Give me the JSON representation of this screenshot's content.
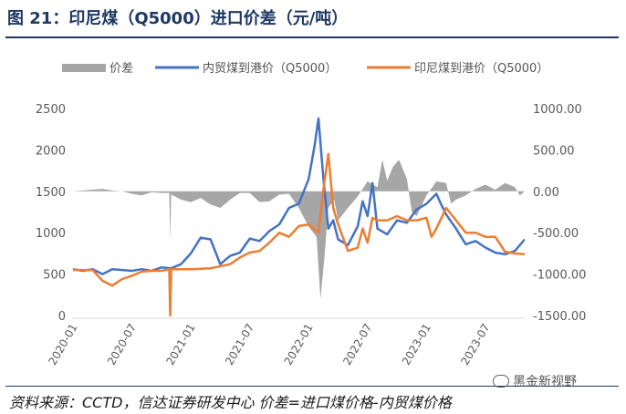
{
  "title": "图 21：印尼煤（Q5000）进口价差（元/吨）",
  "source": "资料来源：CCTD，信达证券研发中心  价差=进口煤价格-内贸煤价格",
  "watermark": "黑金新视野",
  "colors": {
    "spread": "#a6a6a6",
    "domestic": "#4472c4",
    "indonesia": "#ed7d31",
    "title": "#1f3864"
  },
  "chart_data": {
    "type": "line",
    "title": "",
    "left_axis": {
      "min": 0,
      "max": 2500,
      "ticks": [
        "0",
        "500",
        "1000",
        "1500",
        "2000",
        "2500"
      ]
    },
    "right_axis": {
      "min": -1500,
      "max": 1000,
      "ticks": [
        "-1500.00",
        "-1000.00",
        "-500.00",
        "0.00",
        "500.00",
        "1000.00"
      ]
    },
    "x_tick_labels": [
      "2020-01",
      "2020-07",
      "2021-01",
      "2021-07",
      "2022-01",
      "2022-07",
      "2023-01",
      "2023-07"
    ],
    "legend": {
      "spread": "价差",
      "domestic": "内贸煤到港价（Q5000）",
      "indonesia": "印尼煤到港价（Q5000）"
    },
    "series": [
      {
        "name": "价差",
        "kind": "area",
        "axis": "right",
        "points": [
          [
            0,
            0
          ],
          [
            1,
            10
          ],
          [
            2,
            20
          ],
          [
            3,
            30
          ],
          [
            4,
            10
          ],
          [
            5,
            0
          ],
          [
            6,
            -30
          ],
          [
            7,
            -50
          ],
          [
            8,
            -10
          ],
          [
            9,
            -20
          ],
          [
            9.8,
            -20
          ],
          [
            9.9,
            -600
          ],
          [
            10,
            -40
          ],
          [
            11,
            -100
          ],
          [
            12,
            -130
          ],
          [
            13,
            -80
          ],
          [
            14,
            -160
          ],
          [
            15,
            -200
          ],
          [
            16,
            -100
          ],
          [
            17,
            -20
          ],
          [
            18,
            -20
          ],
          [
            19,
            -130
          ],
          [
            20,
            -120
          ],
          [
            21,
            -40
          ],
          [
            22,
            -30
          ],
          [
            23,
            -200
          ],
          [
            24,
            -430
          ],
          [
            24.8,
            -550
          ],
          [
            25.2,
            -1300
          ],
          [
            25.6,
            -800
          ],
          [
            26,
            -200
          ],
          [
            26.6,
            -100
          ],
          [
            27,
            -350
          ],
          [
            28,
            -200
          ],
          [
            29,
            -60
          ],
          [
            30,
            120
          ],
          [
            31,
            50
          ],
          [
            31.5,
            380
          ],
          [
            32,
            130
          ],
          [
            32.6,
            300
          ],
          [
            33.2,
            380
          ],
          [
            34,
            150
          ],
          [
            34.5,
            -250
          ],
          [
            35,
            -300
          ],
          [
            36,
            -50
          ],
          [
            37,
            120
          ],
          [
            38,
            100
          ],
          [
            38.5,
            -150
          ],
          [
            39,
            -100
          ],
          [
            40,
            -50
          ],
          [
            41,
            30
          ],
          [
            42,
            80
          ],
          [
            43,
            20
          ],
          [
            44,
            100
          ],
          [
            45,
            50
          ],
          [
            45.5,
            -50
          ],
          [
            46,
            0
          ]
        ]
      },
      {
        "name": "内贸煤到港价（Q5000）",
        "kind": "line",
        "axis": "left",
        "points": [
          [
            0,
            560
          ],
          [
            1,
            540
          ],
          [
            2,
            560
          ],
          [
            3,
            500
          ],
          [
            4,
            560
          ],
          [
            5,
            550
          ],
          [
            6,
            540
          ],
          [
            7,
            560
          ],
          [
            8,
            540
          ],
          [
            9,
            580
          ],
          [
            10,
            570
          ],
          [
            11,
            620
          ],
          [
            12,
            750
          ],
          [
            13,
            940
          ],
          [
            14,
            920
          ],
          [
            15,
            620
          ],
          [
            16,
            720
          ],
          [
            17,
            760
          ],
          [
            18,
            930
          ],
          [
            19,
            900
          ],
          [
            20,
            1020
          ],
          [
            21,
            1100
          ],
          [
            22,
            1300
          ],
          [
            23,
            1350
          ],
          [
            24,
            1650
          ],
          [
            24.6,
            2050
          ],
          [
            25,
            2380
          ],
          [
            25.5,
            1650
          ],
          [
            26,
            1050
          ],
          [
            26.5,
            1150
          ],
          [
            27,
            920
          ],
          [
            28,
            850
          ],
          [
            29,
            1080
          ],
          [
            29.5,
            1380
          ],
          [
            30,
            1200
          ],
          [
            30.5,
            1600
          ],
          [
            31,
            1050
          ],
          [
            32,
            980
          ],
          [
            33,
            1150
          ],
          [
            34,
            1120
          ],
          [
            35,
            1280
          ],
          [
            36,
            1350
          ],
          [
            37,
            1470
          ],
          [
            37.5,
            1340
          ],
          [
            38,
            1220
          ],
          [
            39,
            1050
          ],
          [
            40,
            860
          ],
          [
            41,
            900
          ],
          [
            42,
            820
          ],
          [
            43,
            760
          ],
          [
            44,
            740
          ],
          [
            45,
            780
          ],
          [
            46,
            920
          ]
        ]
      },
      {
        "name": "印尼煤到港价（Q5000）",
        "kind": "line",
        "axis": "left",
        "points": [
          [
            0,
            550
          ],
          [
            2,
            550
          ],
          [
            3,
            420
          ],
          [
            4,
            360
          ],
          [
            5,
            440
          ],
          [
            6,
            480
          ],
          [
            7,
            530
          ],
          [
            8,
            540
          ],
          [
            9,
            540
          ],
          [
            9.8,
            560
          ],
          [
            9.9,
            0
          ],
          [
            10,
            560
          ],
          [
            12,
            560
          ],
          [
            14,
            570
          ],
          [
            16,
            620
          ],
          [
            17,
            700
          ],
          [
            18,
            760
          ],
          [
            19,
            780
          ],
          [
            20,
            880
          ],
          [
            21,
            1000
          ],
          [
            22,
            950
          ],
          [
            23,
            1080
          ],
          [
            24,
            1100
          ],
          [
            25,
            1000
          ],
          [
            25.5,
            1520
          ],
          [
            26,
            1950
          ],
          [
            26.5,
            1300
          ],
          [
            27,
            1100
          ],
          [
            28,
            780
          ],
          [
            29,
            820
          ],
          [
            29.5,
            1050
          ],
          [
            30,
            880
          ],
          [
            30.5,
            1180
          ],
          [
            31,
            1150
          ],
          [
            32,
            1150
          ],
          [
            33,
            1200
          ],
          [
            34,
            1150
          ],
          [
            35,
            1150
          ],
          [
            36,
            1180
          ],
          [
            36.5,
            950
          ],
          [
            37,
            1050
          ],
          [
            38,
            1300
          ],
          [
            39,
            1150
          ],
          [
            40,
            1000
          ],
          [
            41,
            1000
          ],
          [
            42,
            950
          ],
          [
            43,
            950
          ],
          [
            44,
            770
          ],
          [
            45,
            750
          ],
          [
            46,
            740
          ]
        ]
      }
    ]
  }
}
